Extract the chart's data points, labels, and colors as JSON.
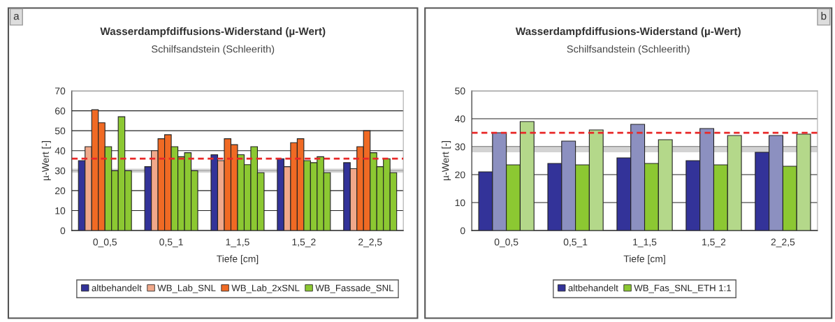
{
  "chart_data": [
    {
      "type": "bar",
      "title": "Wasserdampfdiffusions-Widerstand (µ-Wert)",
      "subtitle": "Schilfsandstein (Schleerith)",
      "xlabel": "Tiefe [cm]",
      "ylabel": "µ-Wert [-]",
      "categories": [
        "0_0,5",
        "0,5_1",
        "1_1,5",
        "1,5_2",
        "2_2,5"
      ],
      "series": [
        {
          "name": "altbehandelt",
          "color": "#333399",
          "values": [
            35,
            32,
            38,
            36,
            34
          ]
        },
        {
          "name": "WB_Lab_SNL",
          "color": "#f0a88a",
          "values": [
            42,
            40,
            35,
            32,
            31
          ]
        },
        {
          "name": "WB_Lab_2xSNL",
          "color": "#f06a24",
          "values": [
            60.5,
            46,
            46,
            44,
            42
          ]
        },
        {
          "color": "#f06a24",
          "values": [
            54,
            48,
            43,
            46,
            50
          ]
        },
        {
          "name": "WB_Fassade_SNL",
          "color": "#8cc832",
          "values": [
            42,
            42,
            38,
            35,
            39
          ]
        },
        {
          "color": "#8cc832",
          "values": [
            30,
            37,
            33,
            34,
            32
          ]
        },
        {
          "color": "#8cc832",
          "values": [
            57,
            39,
            42,
            37,
            36
          ]
        },
        {
          "color": "#8cc832",
          "values": [
            30,
            30,
            29,
            29,
            29
          ]
        }
      ],
      "ylim": [
        0,
        70
      ],
      "yticks": [
        0,
        10,
        20,
        30,
        40,
        50,
        60,
        70
      ],
      "grid": "y",
      "legend": "bottom",
      "ref_lines": [
        {
          "axis": "y",
          "value": 36,
          "color": "#e82828",
          "line_style": "dashed"
        }
      ],
      "bands": [
        {
          "axis": "y",
          "from": 29,
          "to": 31,
          "color": "#c8c8c8"
        }
      ],
      "annotations": [
        "a"
      ]
    },
    {
      "type": "bar",
      "title": "Wasserdampfdiffusions-Widerstand (µ-Wert)",
      "subtitle": "Schilfsandstein (Schleerith)",
      "xlabel": "Tiefe [cm]",
      "ylabel": "µ-Wert [-]",
      "categories": [
        "0_0,5",
        "0,5_1",
        "1_1,5",
        "1,5_2",
        "2_2,5"
      ],
      "series": [
        {
          "name": "altbehandelt",
          "color": "#333399",
          "values": [
            21,
            24,
            26,
            25,
            28
          ]
        },
        {
          "color": "#8c90c0",
          "values": [
            35,
            32,
            38,
            36.5,
            34
          ]
        },
        {
          "name": "WB_Fas_SNL_ETH 1:1",
          "color": "#8cc832",
          "values": [
            23.5,
            23.5,
            24,
            23.5,
            23
          ]
        },
        {
          "color": "#b4d88a",
          "values": [
            39,
            36,
            32.5,
            34,
            34.5
          ]
        }
      ],
      "ylim": [
        0,
        50
      ],
      "yticks": [
        0,
        10,
        20,
        30,
        40,
        50
      ],
      "grid": "y",
      "legend": "bottom",
      "ref_lines": [
        {
          "axis": "y",
          "value": 35,
          "color": "#e82828",
          "line_style": "dashed"
        }
      ],
      "bands": [
        {
          "axis": "y",
          "from": 28,
          "to": 30,
          "color": "#c8c8c8"
        }
      ],
      "annotations": [
        "b"
      ]
    }
  ]
}
